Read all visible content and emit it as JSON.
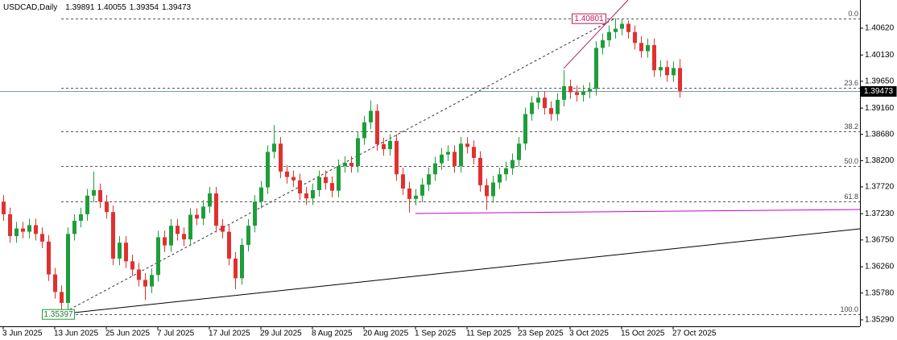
{
  "chart_data": {
    "type": "candlestick",
    "symbol": "USDCAD,Daily",
    "up_color": "#1f9d3a",
    "down_color": "#e0312f",
    "ylim": [
      1.35172,
      1.41135
    ],
    "yticks": [
      {
        "value": 1.4062,
        "label": "1.40620"
      },
      {
        "value": 1.4013,
        "label": "1.40130"
      },
      {
        "value": 1.3965,
        "label": "1.39650"
      },
      {
        "value": 1.3916,
        "label": "1.39160"
      },
      {
        "value": 1.3868,
        "label": "1.38680"
      },
      {
        "value": 1.382,
        "label": "1.38200"
      },
      {
        "value": 1.3772,
        "label": "1.37720"
      },
      {
        "value": 1.3723,
        "label": "1.37230"
      },
      {
        "value": 1.3675,
        "label": "1.36750"
      },
      {
        "value": 1.3626,
        "label": "1.36260"
      },
      {
        "value": 1.3578,
        "label": "1.35780"
      },
      {
        "value": 1.3529,
        "label": "1.35290"
      }
    ],
    "categories": [
      "3 Jun 2025",
      null,
      null,
      null,
      null,
      null,
      null,
      null,
      "13 Jun 2025",
      null,
      null,
      null,
      null,
      null,
      null,
      null,
      "25 Jun 2025",
      null,
      null,
      null,
      null,
      null,
      null,
      null,
      "7 Jul 2025",
      null,
      null,
      null,
      null,
      null,
      null,
      null,
      "17 Jul 2025",
      null,
      null,
      null,
      null,
      null,
      null,
      null,
      "29 Jul 2025",
      null,
      null,
      null,
      null,
      null,
      null,
      null,
      "8 Aug 2025",
      null,
      null,
      null,
      null,
      null,
      null,
      null,
      "20 Aug 2025",
      null,
      null,
      null,
      null,
      null,
      null,
      null,
      "1 Sep 2025",
      null,
      null,
      null,
      null,
      null,
      null,
      null,
      "11 Sep 2025",
      null,
      null,
      null,
      null,
      null,
      null,
      null,
      "23 Sep 2025",
      null,
      null,
      null,
      null,
      null,
      null,
      null,
      "3 Oct 2025",
      null,
      null,
      null,
      null,
      null,
      null,
      null,
      "15 Oct 2025",
      null,
      null,
      null,
      null,
      null,
      null,
      null,
      "27 Oct 2025",
      null
    ],
    "open": [
      1.3745,
      1.3722,
      1.3682,
      1.3696,
      1.369,
      1.3702,
      1.3686,
      1.3672,
      1.3612,
      1.358,
      1.356,
      1.3686,
      1.371,
      1.3722,
      1.3756,
      1.3766,
      1.3745,
      1.3726,
      1.3641,
      1.367,
      1.3636,
      1.3621,
      1.3602,
      1.359,
      1.3611,
      1.368,
      1.3665,
      1.3701,
      1.3686,
      1.3676,
      1.3721,
      1.3714,
      1.3736,
      1.376,
      1.3701,
      1.369,
      1.3641,
      1.3605,
      1.3666,
      1.3701,
      1.3745,
      1.3771,
      1.3836,
      1.3851,
      1.38,
      1.379,
      1.3784,
      1.376,
      1.3751,
      1.3766,
      1.379,
      1.3779,
      1.3765,
      1.381,
      1.3816,
      1.381,
      1.3861,
      1.389,
      1.3911,
      1.385,
      1.3841,
      1.3856,
      1.3795,
      1.3769,
      1.375,
      1.3756,
      1.3776,
      1.3795,
      1.3815,
      1.3831,
      1.3836,
      1.381,
      1.3851,
      1.3845,
      1.3825,
      1.3775,
      1.3755,
      1.378,
      1.3795,
      1.3806,
      1.3821,
      1.3851,
      1.3905,
      1.3926,
      1.3935,
      1.3916,
      1.3905,
      1.3931,
      1.3956,
      1.3945,
      1.394,
      1.3946,
      1.3951,
      1.4026,
      1.404,
      1.4055,
      1.4061,
      1.407,
      1.4055,
      1.4035,
      1.402,
      1.4031,
      1.3985,
      1.3991,
      1.3976,
      1.39891
    ],
    "high": [
      1.3757,
      1.3734,
      1.3708,
      1.3708,
      1.3714,
      1.3714,
      1.3698,
      1.3684,
      1.3624,
      1.3592,
      1.3698,
      1.3722,
      1.3734,
      1.3768,
      1.38,
      1.3778,
      1.3757,
      1.3738,
      1.3682,
      1.3682,
      1.3648,
      1.3633,
      1.3614,
      1.3623,
      1.3692,
      1.3692,
      1.3713,
      1.3713,
      1.3698,
      1.3733,
      1.3733,
      1.3748,
      1.3772,
      1.3772,
      1.3713,
      1.3702,
      1.3653,
      1.3678,
      1.3713,
      1.3757,
      1.3783,
      1.3848,
      1.3885,
      1.3863,
      1.3812,
      1.3802,
      1.3796,
      1.3772,
      1.3778,
      1.3802,
      1.3802,
      1.3791,
      1.3822,
      1.3828,
      1.3828,
      1.3873,
      1.3902,
      1.393,
      1.3923,
      1.3862,
      1.3868,
      1.3868,
      1.3807,
      1.3781,
      1.3768,
      1.3788,
      1.3807,
      1.3827,
      1.3843,
      1.3848,
      1.3848,
      1.3863,
      1.3863,
      1.3857,
      1.3837,
      1.3787,
      1.3792,
      1.3807,
      1.3818,
      1.3833,
      1.3863,
      1.3917,
      1.3938,
      1.3947,
      1.3947,
      1.3928,
      1.3943,
      1.3985,
      1.3968,
      1.3957,
      1.3958,
      1.3963,
      1.4038,
      1.4052,
      1.4067,
      1.40801,
      1.4078,
      1.4076,
      1.4067,
      1.4047,
      1.4043,
      1.4043,
      1.4003,
      1.4003,
      1.4001,
      1.40055
    ],
    "low": [
      1.371,
      1.367,
      1.367,
      1.3678,
      1.3678,
      1.3674,
      1.366,
      1.36,
      1.3568,
      1.35397,
      1.3548,
      1.3674,
      1.3698,
      1.371,
      1.3744,
      1.3733,
      1.3714,
      1.3629,
      1.3629,
      1.3624,
      1.3609,
      1.359,
      1.3565,
      1.3578,
      1.3599,
      1.3653,
      1.3653,
      1.3674,
      1.3664,
      1.3664,
      1.3702,
      1.3702,
      1.3724,
      1.3689,
      1.3678,
      1.3629,
      1.3585,
      1.3593,
      1.3654,
      1.3689,
      1.3733,
      1.3759,
      1.3824,
      1.3788,
      1.3778,
      1.3772,
      1.3748,
      1.3739,
      1.3739,
      1.3754,
      1.3767,
      1.3753,
      1.3753,
      1.3798,
      1.3798,
      1.3798,
      1.3849,
      1.3878,
      1.3838,
      1.3829,
      1.3829,
      1.3783,
      1.3757,
      1.3725,
      1.3738,
      1.3744,
      1.3764,
      1.3783,
      1.3803,
      1.3819,
      1.3798,
      1.3798,
      1.3833,
      1.3813,
      1.3763,
      1.373,
      1.3743,
      1.3768,
      1.3783,
      1.3794,
      1.3809,
      1.3839,
      1.3893,
      1.3914,
      1.3904,
      1.3893,
      1.3893,
      1.3919,
      1.3933,
      1.3928,
      1.3928,
      1.3934,
      1.3939,
      1.4014,
      1.4028,
      1.4043,
      1.4049,
      1.4043,
      1.4023,
      1.4008,
      1.4008,
      1.3973,
      1.3973,
      1.3964,
      1.3964,
      1.39354
    ],
    "close": [
      1.3722,
      1.3682,
      1.3696,
      1.369,
      1.3702,
      1.3686,
      1.3672,
      1.3612,
      1.358,
      1.356,
      1.3686,
      1.371,
      1.3722,
      1.3756,
      1.3766,
      1.3745,
      1.3726,
      1.3641,
      1.367,
      1.3636,
      1.3621,
      1.3602,
      1.359,
      1.3611,
      1.368,
      1.3665,
      1.3701,
      1.3686,
      1.3676,
      1.3721,
      1.3714,
      1.3736,
      1.376,
      1.3701,
      1.369,
      1.3641,
      1.3605,
      1.3666,
      1.3701,
      1.3745,
      1.3771,
      1.3836,
      1.3851,
      1.38,
      1.379,
      1.3784,
      1.376,
      1.3751,
      1.3766,
      1.379,
      1.3779,
      1.3765,
      1.381,
      1.3816,
      1.381,
      1.3861,
      1.389,
      1.3911,
      1.385,
      1.3841,
      1.3856,
      1.3795,
      1.3769,
      1.375,
      1.3756,
      1.3776,
      1.3795,
      1.3815,
      1.3831,
      1.3836,
      1.381,
      1.3851,
      1.3845,
      1.3825,
      1.3775,
      1.3755,
      1.378,
      1.3795,
      1.3806,
      1.3821,
      1.3851,
      1.3905,
      1.3926,
      1.3935,
      1.3916,
      1.3905,
      1.3931,
      1.3956,
      1.3945,
      1.394,
      1.3946,
      1.3951,
      1.4026,
      1.404,
      1.4055,
      1.4061,
      1.407,
      1.4055,
      1.4035,
      1.402,
      1.4031,
      1.3985,
      1.3991,
      1.3976,
      1.39891,
      1.39473
    ],
    "fibo_levels": [
      {
        "label": "0.0",
        "value": 1.40801
      },
      {
        "label": "23.6",
        "value": 1.39526
      },
      {
        "label": "38.2",
        "value": 1.38737
      },
      {
        "label": "50.0",
        "value": 1.38099
      },
      {
        "label": "61.8",
        "value": 1.37461
      },
      {
        "label": "100.0",
        "value": 1.35397
      }
    ],
    "trendlines": [
      {
        "color": "#000000",
        "style": "solid",
        "x": [
          9,
          133
        ],
        "y": [
          1.35397,
          1.36954
        ]
      },
      {
        "color": "#cc00cc",
        "style": "solid",
        "x": [
          64,
          133
        ],
        "y": [
          1.37233,
          1.37307
        ]
      },
      {
        "color": "#333333",
        "style": "dashed",
        "x": [
          9,
          95
        ],
        "y": [
          1.35397,
          1.40801
        ]
      },
      {
        "color": "#b0186a",
        "style": "solid",
        "x": [
          87,
          97
        ],
        "y": [
          1.39884,
          1.41135
        ]
      }
    ]
  }
}
